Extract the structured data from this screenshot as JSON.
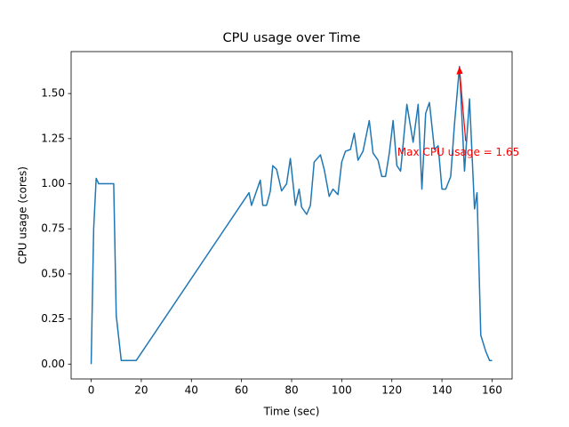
{
  "chart_data": {
    "type": "line",
    "title": "CPU usage over Time",
    "xlabel": "Time (sec)",
    "ylabel": "CPU usage (cores)",
    "x": [
      0,
      1,
      2,
      3,
      9,
      10,
      12,
      14,
      18,
      63,
      64,
      66,
      67.5,
      68.5,
      70,
      71.5,
      72.5,
      74,
      76,
      78,
      79.5,
      81.5,
      83,
      84,
      86,
      87.5,
      89,
      91.5,
      93,
      95,
      96.5,
      98.5,
      100,
      101.5,
      103.5,
      105,
      106.5,
      108.5,
      111,
      112.5,
      114.5,
      116,
      117.5,
      119,
      120.5,
      122,
      123.5,
      126,
      128.5,
      130.5,
      132,
      133.5,
      135,
      137,
      138.5,
      140,
      141.5,
      143.5,
      145,
      147,
      149,
      151,
      153,
      154,
      155.5,
      157.5,
      159,
      160
    ],
    "series": [
      {
        "color": "#1f77b4",
        "values": [
          0,
          0.75,
          1.03,
          1.0,
          1.0,
          0.27,
          0.02,
          0.02,
          0.02,
          0.95,
          0.88,
          0.96,
          1.02,
          0.88,
          0.88,
          0.96,
          1.1,
          1.08,
          0.96,
          1.0,
          1.14,
          0.88,
          0.97,
          0.87,
          0.83,
          0.88,
          1.12,
          1.16,
          1.08,
          0.93,
          0.97,
          0.94,
          1.12,
          1.18,
          1.19,
          1.28,
          1.13,
          1.18,
          1.35,
          1.17,
          1.13,
          1.04,
          1.04,
          1.17,
          1.35,
          1.1,
          1.07,
          1.44,
          1.23,
          1.44,
          0.97,
          1.39,
          1.45,
          1.19,
          1.21,
          0.97,
          0.97,
          1.04,
          1.33,
          1.65,
          1.07,
          1.47,
          0.86,
          0.95,
          0.16,
          0.07,
          0.02,
          0.02
        ]
      }
    ],
    "xlim": [
      -8,
      168
    ],
    "ylim": [
      -0.0825,
      1.7325
    ],
    "xticks": [
      0,
      20,
      40,
      60,
      80,
      100,
      120,
      140,
      160
    ],
    "yticks": [
      {
        "value": 0,
        "label": "0.00"
      },
      {
        "value": 0.25,
        "label": "0.25"
      },
      {
        "value": 0.5,
        "label": "0.50"
      },
      {
        "value": 0.75,
        "label": "0.75"
      },
      {
        "value": 1.0,
        "label": "1.00"
      },
      {
        "value": 1.25,
        "label": "1.25"
      },
      {
        "value": 1.5,
        "label": "1.50"
      }
    ],
    "annotation": {
      "text": "Max CPU usage = 1.65",
      "x": 147,
      "y": 1.65,
      "color": "red"
    }
  }
}
